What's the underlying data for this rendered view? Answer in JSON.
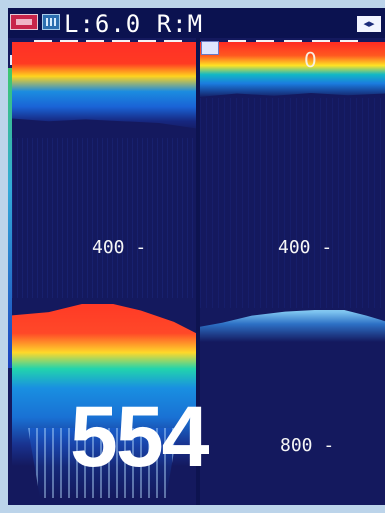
{
  "header": {
    "range_readout": "L:6.0 R:M"
  },
  "display": {
    "surface_marker": "0",
    "left_depth_label": "400 -",
    "right_depth_label": "400 -",
    "right_lower_depth_label": "800 -",
    "digital_depth": "554"
  },
  "icons": [
    "mode-badge-icon",
    "range-scale-icon",
    "surface-arrow-icon",
    "left-right-arrows-icon",
    "screen-corner-icon"
  ],
  "colors": {
    "background": "#14195e",
    "red_echo": "#ff3027",
    "yellow_echo": "#ffd31e",
    "cyan_echo": "#22d4ad",
    "blue_echo": "#1b7ce0",
    "text": "#ffffff"
  }
}
